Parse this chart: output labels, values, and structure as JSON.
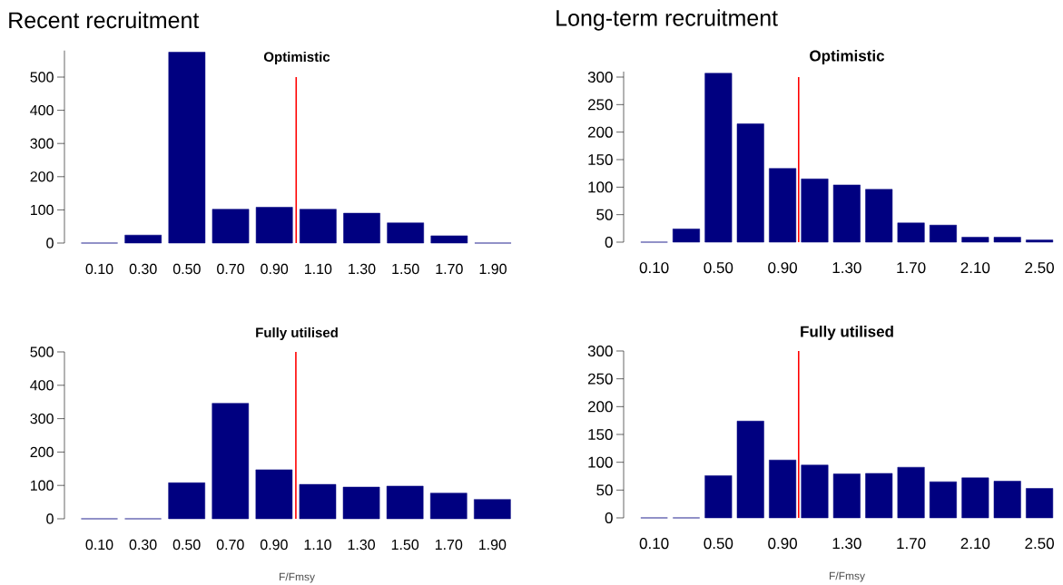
{
  "chart_data": [
    {
      "type": "bar",
      "title": "Recent recruitment",
      "subtitle": "Optimistic",
      "x": [
        0.1,
        0.3,
        0.5,
        0.7,
        0.9,
        1.1,
        1.3,
        1.5,
        1.7,
        1.9
      ],
      "values": [
        0,
        24,
        575,
        102,
        108,
        102,
        90,
        61,
        22,
        0
      ],
      "color": "#000080",
      "xlim": [
        -0.06,
        1.9
      ],
      "xticks": [
        {
          "value": 0.1,
          "label": "0.10"
        },
        {
          "value": 0.3,
          "label": "0.30"
        },
        {
          "value": 0.5,
          "label": "0.50"
        },
        {
          "value": 0.7,
          "label": "0.70"
        },
        {
          "value": 0.9,
          "label": "0.90"
        },
        {
          "value": 1.1,
          "label": "1.10"
        },
        {
          "value": 1.3,
          "label": "1.30"
        },
        {
          "value": 1.5,
          "label": "1.50"
        },
        {
          "value": 1.7,
          "label": "1.70"
        },
        {
          "value": 1.9,
          "label": "1.90"
        }
      ],
      "ylim": [
        0,
        580
      ],
      "yticks": [
        0,
        100,
        200,
        300,
        400,
        500
      ],
      "ref_lines": [
        {
          "axis": "x",
          "value": 1.0,
          "color": "#ff0000"
        }
      ]
    },
    {
      "type": "bar",
      "title": "Long-term recruitment",
      "subtitle": "Optimistic",
      "x": [
        0.1,
        0.3,
        0.5,
        0.7,
        0.9,
        1.1,
        1.3,
        1.5,
        1.7,
        1.9,
        2.1,
        2.3,
        2.5
      ],
      "values": [
        0,
        24,
        307,
        215,
        134,
        115,
        104,
        96,
        35,
        31,
        9,
        9,
        4
      ],
      "color": "#000080",
      "xlim": [
        -0.09,
        2.59
      ],
      "xticks": [
        {
          "value": 0.1,
          "label": "0.10"
        },
        {
          "value": 0.5,
          "label": "0.50"
        },
        {
          "value": 0.9,
          "label": "0.90"
        },
        {
          "value": 1.3,
          "label": "1.30"
        },
        {
          "value": 1.7,
          "label": "1.70"
        },
        {
          "value": 2.1,
          "label": "2.10"
        },
        {
          "value": 2.5,
          "label": "2.50"
        }
      ],
      "ylim": [
        0,
        310
      ],
      "yticks": [
        0,
        50,
        100,
        150,
        200,
        250,
        300
      ],
      "ref_lines": [
        {
          "axis": "x",
          "value": 1.0,
          "color": "#ff0000"
        }
      ]
    },
    {
      "type": "bar",
      "title": "Fully utilised",
      "xlabel": "F/Fmsy",
      "x": [
        0.1,
        0.3,
        0.5,
        0.7,
        0.9,
        1.1,
        1.3,
        1.5,
        1.7,
        1.9
      ],
      "values": [
        0,
        0,
        108,
        346,
        147,
        103,
        95,
        98,
        77,
        58
      ],
      "color": "#000080",
      "xlim": [
        -0.06,
        1.99
      ],
      "xticks": [
        {
          "value": 0.1,
          "label": "0.10"
        },
        {
          "value": 0.3,
          "label": "0.30"
        },
        {
          "value": 0.5,
          "label": "0.50"
        },
        {
          "value": 0.7,
          "label": "0.70"
        },
        {
          "value": 0.9,
          "label": "0.90"
        },
        {
          "value": 1.1,
          "label": "1.10"
        },
        {
          "value": 1.3,
          "label": "1.30"
        },
        {
          "value": 1.5,
          "label": "1.50"
        },
        {
          "value": 1.7,
          "label": "1.70"
        },
        {
          "value": 1.9,
          "label": "1.90"
        }
      ],
      "ylim": [
        0,
        500
      ],
      "yticks": [
        0,
        100,
        200,
        300,
        400,
        500
      ],
      "ref_lines": [
        {
          "axis": "x",
          "value": 1.0,
          "color": "#ff0000"
        }
      ]
    },
    {
      "type": "bar",
      "title": "Fully utilised",
      "xlabel": "F/Fmsy",
      "x": [
        0.1,
        0.3,
        0.5,
        0.7,
        0.9,
        1.1,
        1.3,
        1.5,
        1.7,
        1.9,
        2.1,
        2.3,
        2.5
      ],
      "values": [
        0,
        0,
        76,
        174,
        104,
        95,
        79,
        80,
        91,
        65,
        72,
        66,
        53
      ],
      "color": "#000080",
      "xlim": [
        -0.09,
        2.59
      ],
      "xticks": [
        {
          "value": 0.1,
          "label": "0.10"
        },
        {
          "value": 0.5,
          "label": "0.50"
        },
        {
          "value": 0.9,
          "label": "0.90"
        },
        {
          "value": 1.3,
          "label": "1.30"
        },
        {
          "value": 1.7,
          "label": "1.70"
        },
        {
          "value": 2.1,
          "label": "2.10"
        },
        {
          "value": 2.5,
          "label": "2.50"
        }
      ],
      "ylim": [
        0,
        300
      ],
      "yticks": [
        0,
        50,
        100,
        150,
        200,
        250,
        300
      ],
      "ref_lines": [
        {
          "axis": "x",
          "value": 1.0,
          "color": "#ff0000"
        }
      ]
    }
  ]
}
